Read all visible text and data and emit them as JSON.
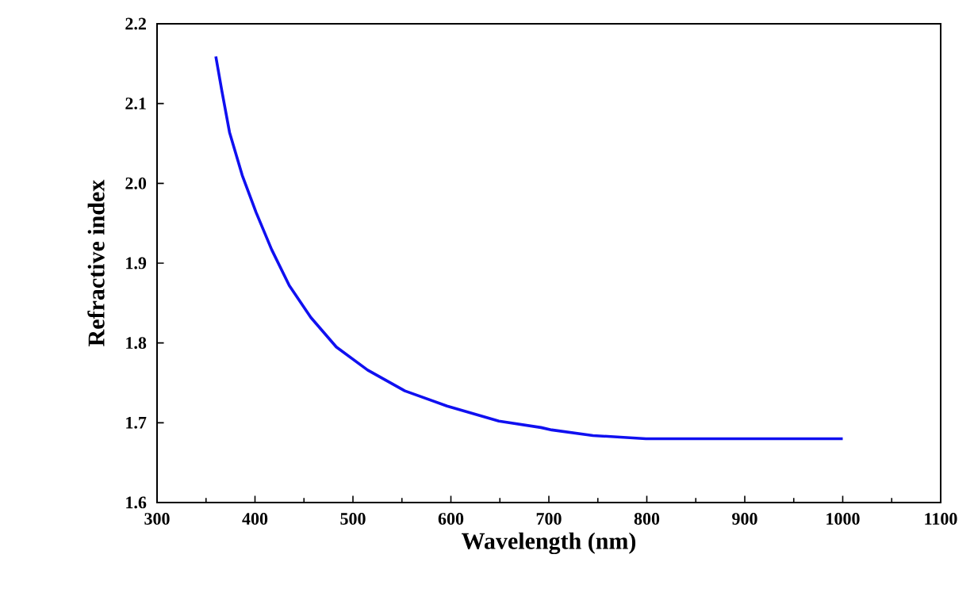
{
  "chart_data": {
    "type": "line",
    "xlabel": "Wavelength (nm)",
    "ylabel": "Refractive index",
    "xlim": [
      300,
      1100
    ],
    "xticks": [
      300,
      400,
      500,
      600,
      700,
      800,
      900,
      1000,
      1100
    ],
    "ylim": [
      1.6,
      2.2
    ],
    "yticks": [
      1.6,
      1.7,
      1.8,
      1.9,
      {
        "value": 2.0,
        "label": "2.0"
      },
      2.1,
      2.2
    ],
    "grid": false,
    "marker": "none",
    "line_style": "solid",
    "series": [
      {
        "color": "#1010f0",
        "x": [
          360,
          366,
          374,
          387,
          401,
          417,
          435,
          457,
          483,
          515,
          553,
          596,
          649,
          692,
          703,
          745,
          799,
          850,
          900,
          950,
          1000
        ],
        "values": [
          2.159,
          2.117,
          2.064,
          2.01,
          1.964,
          1.917,
          1.872,
          1.832,
          1.795,
          1.766,
          1.74,
          1.721,
          1.702,
          1.694,
          1.691,
          1.684,
          1.68,
          1.68,
          1.68,
          1.68,
          1.68
        ]
      }
    ]
  }
}
